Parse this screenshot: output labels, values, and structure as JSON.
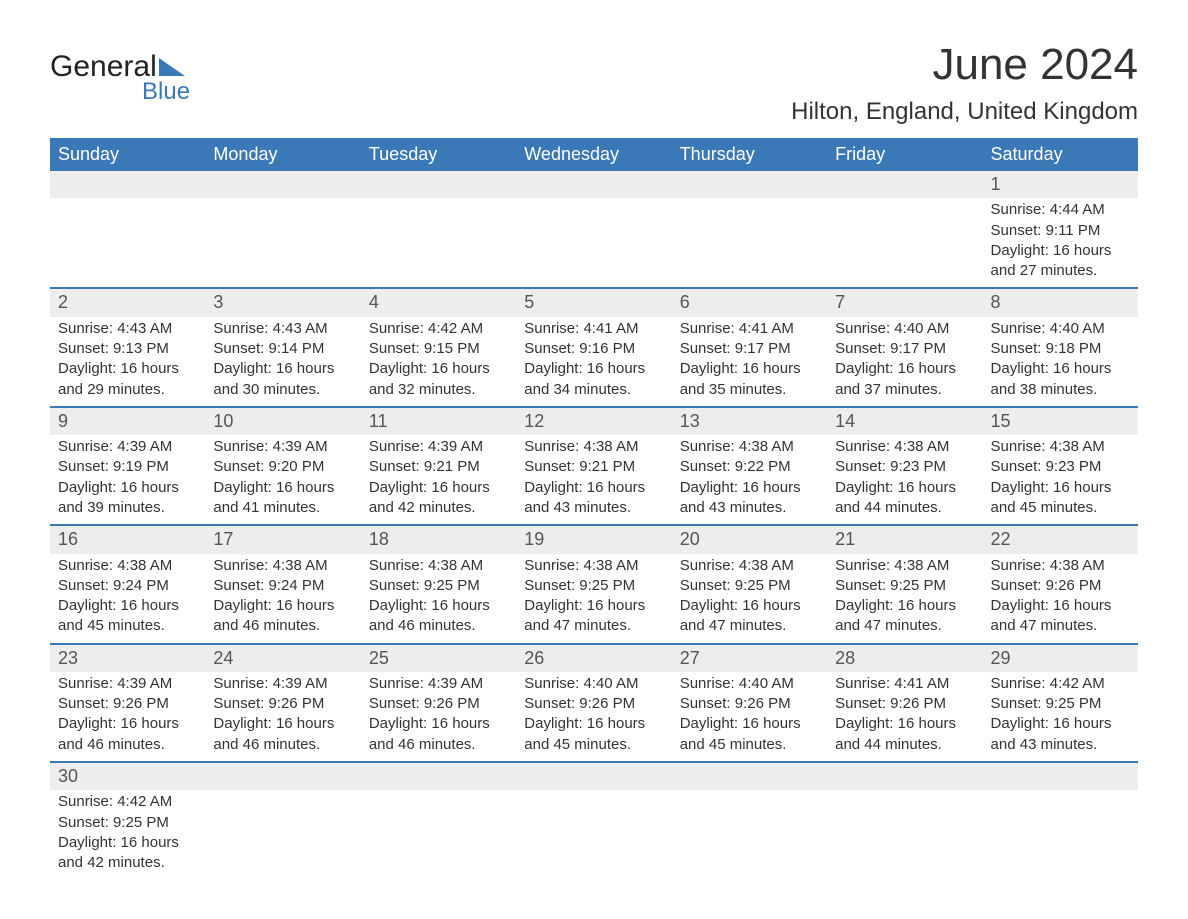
{
  "logo": {
    "text1": "General",
    "text2": "Blue",
    "triangle_color": "#3b78b8"
  },
  "title": "June 2024",
  "location": "Hilton, England, United Kingdom",
  "colors": {
    "header_bg": "#3b78b8",
    "header_text": "#ffffff",
    "daynum_bg": "#ededed",
    "border": "#3b78b8",
    "text": "#333333"
  },
  "day_labels": [
    "Sunday",
    "Monday",
    "Tuesday",
    "Wednesday",
    "Thursday",
    "Friday",
    "Saturday"
  ],
  "weeks": [
    [
      null,
      null,
      null,
      null,
      null,
      null,
      {
        "n": "1",
        "sunrise": "4:44 AM",
        "sunset": "9:11 PM",
        "daylight": "16 hours and 27 minutes."
      }
    ],
    [
      {
        "n": "2",
        "sunrise": "4:43 AM",
        "sunset": "9:13 PM",
        "daylight": "16 hours and 29 minutes."
      },
      {
        "n": "3",
        "sunrise": "4:43 AM",
        "sunset": "9:14 PM",
        "daylight": "16 hours and 30 minutes."
      },
      {
        "n": "4",
        "sunrise": "4:42 AM",
        "sunset": "9:15 PM",
        "daylight": "16 hours and 32 minutes."
      },
      {
        "n": "5",
        "sunrise": "4:41 AM",
        "sunset": "9:16 PM",
        "daylight": "16 hours and 34 minutes."
      },
      {
        "n": "6",
        "sunrise": "4:41 AM",
        "sunset": "9:17 PM",
        "daylight": "16 hours and 35 minutes."
      },
      {
        "n": "7",
        "sunrise": "4:40 AM",
        "sunset": "9:17 PM",
        "daylight": "16 hours and 37 minutes."
      },
      {
        "n": "8",
        "sunrise": "4:40 AM",
        "sunset": "9:18 PM",
        "daylight": "16 hours and 38 minutes."
      }
    ],
    [
      {
        "n": "9",
        "sunrise": "4:39 AM",
        "sunset": "9:19 PM",
        "daylight": "16 hours and 39 minutes."
      },
      {
        "n": "10",
        "sunrise": "4:39 AM",
        "sunset": "9:20 PM",
        "daylight": "16 hours and 41 minutes."
      },
      {
        "n": "11",
        "sunrise": "4:39 AM",
        "sunset": "9:21 PM",
        "daylight": "16 hours and 42 minutes."
      },
      {
        "n": "12",
        "sunrise": "4:38 AM",
        "sunset": "9:21 PM",
        "daylight": "16 hours and 43 minutes."
      },
      {
        "n": "13",
        "sunrise": "4:38 AM",
        "sunset": "9:22 PM",
        "daylight": "16 hours and 43 minutes."
      },
      {
        "n": "14",
        "sunrise": "4:38 AM",
        "sunset": "9:23 PM",
        "daylight": "16 hours and 44 minutes."
      },
      {
        "n": "15",
        "sunrise": "4:38 AM",
        "sunset": "9:23 PM",
        "daylight": "16 hours and 45 minutes."
      }
    ],
    [
      {
        "n": "16",
        "sunrise": "4:38 AM",
        "sunset": "9:24 PM",
        "daylight": "16 hours and 45 minutes."
      },
      {
        "n": "17",
        "sunrise": "4:38 AM",
        "sunset": "9:24 PM",
        "daylight": "16 hours and 46 minutes."
      },
      {
        "n": "18",
        "sunrise": "4:38 AM",
        "sunset": "9:25 PM",
        "daylight": "16 hours and 46 minutes."
      },
      {
        "n": "19",
        "sunrise": "4:38 AM",
        "sunset": "9:25 PM",
        "daylight": "16 hours and 47 minutes."
      },
      {
        "n": "20",
        "sunrise": "4:38 AM",
        "sunset": "9:25 PM",
        "daylight": "16 hours and 47 minutes."
      },
      {
        "n": "21",
        "sunrise": "4:38 AM",
        "sunset": "9:25 PM",
        "daylight": "16 hours and 47 minutes."
      },
      {
        "n": "22",
        "sunrise": "4:38 AM",
        "sunset": "9:26 PM",
        "daylight": "16 hours and 47 minutes."
      }
    ],
    [
      {
        "n": "23",
        "sunrise": "4:39 AM",
        "sunset": "9:26 PM",
        "daylight": "16 hours and 46 minutes."
      },
      {
        "n": "24",
        "sunrise": "4:39 AM",
        "sunset": "9:26 PM",
        "daylight": "16 hours and 46 minutes."
      },
      {
        "n": "25",
        "sunrise": "4:39 AM",
        "sunset": "9:26 PM",
        "daylight": "16 hours and 46 minutes."
      },
      {
        "n": "26",
        "sunrise": "4:40 AM",
        "sunset": "9:26 PM",
        "daylight": "16 hours and 45 minutes."
      },
      {
        "n": "27",
        "sunrise": "4:40 AM",
        "sunset": "9:26 PM",
        "daylight": "16 hours and 45 minutes."
      },
      {
        "n": "28",
        "sunrise": "4:41 AM",
        "sunset": "9:26 PM",
        "daylight": "16 hours and 44 minutes."
      },
      {
        "n": "29",
        "sunrise": "4:42 AM",
        "sunset": "9:25 PM",
        "daylight": "16 hours and 43 minutes."
      }
    ],
    [
      {
        "n": "30",
        "sunrise": "4:42 AM",
        "sunset": "9:25 PM",
        "daylight": "16 hours and 42 minutes."
      },
      null,
      null,
      null,
      null,
      null,
      null
    ]
  ],
  "labels": {
    "sunrise": "Sunrise:",
    "sunset": "Sunset:",
    "daylight": "Daylight:"
  }
}
